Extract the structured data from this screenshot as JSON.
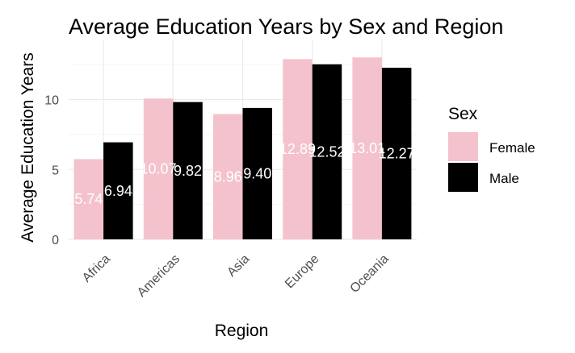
{
  "chart_data": {
    "type": "bar",
    "title": "Average Education Years by Sex and Region",
    "xlabel": "Region",
    "ylabel": "Average Education Years",
    "categories": [
      "Africa",
      "Americas",
      "Asia",
      "Europe",
      "Oceania"
    ],
    "series": [
      {
        "name": "Female",
        "values": [
          5.74,
          10.07,
          8.96,
          12.89,
          13.01
        ],
        "labels": [
          "5.74",
          "10.07",
          "8.96",
          "12.89",
          "13.01"
        ],
        "color": "#f4c2cc"
      },
      {
        "name": "Male",
        "values": [
          6.94,
          9.82,
          9.4,
          12.52,
          12.27
        ],
        "labels": [
          "6.94",
          "9.82",
          "9.40",
          "12.52",
          "12.27"
        ],
        "color": "#000000"
      }
    ],
    "yticks": [
      0,
      5,
      10
    ],
    "ylim": [
      0,
      13.5
    ],
    "grid": true,
    "legend": {
      "title": "Sex",
      "placement": "right"
    }
  }
}
